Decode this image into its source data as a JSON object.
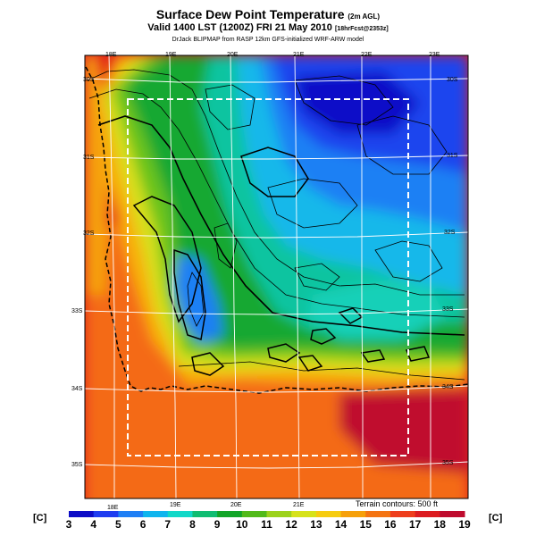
{
  "header": {
    "title": "Surface Dew Point Temperature",
    "title_suffix": "(2m AGL)",
    "subtitle": "Valid 1400 LST (1200Z) FRI 21 May 2010",
    "subtitle_suffix": "[18hrFcst@2353z]",
    "credit": "DrJack BLIPMAP from RASP 12km GFS-initialized WRF-ARW model"
  },
  "map": {
    "lon_labels_top": [
      "18E",
      "19E",
      "20E",
      "21E",
      "22E",
      "23E"
    ],
    "lon_labels_bottom": [
      "18E",
      "19E",
      "20E",
      "21E"
    ],
    "lat_labels_left": [
      "30S",
      "31S",
      "32S",
      "33S",
      "34S",
      "35S"
    ],
    "lat_labels_right": [
      "30S",
      "31S",
      "32S",
      "33S",
      "34S",
      "35S"
    ],
    "footnote": "Terrain contours: 500 ft"
  },
  "colorbar": {
    "unit_left": "[C]",
    "unit_right": "[C]",
    "labels": [
      "3",
      "4",
      "5",
      "6",
      "7",
      "8",
      "9",
      "10",
      "11",
      "12",
      "13",
      "14",
      "15",
      "16",
      "17",
      "18",
      "19"
    ],
    "colors": [
      "#0c0cc6",
      "#1f3df0",
      "#1e7ff5",
      "#10b5ee",
      "#12d8c8",
      "#10bd72",
      "#12a528",
      "#52ba1a",
      "#9cd21c",
      "#d6e21a",
      "#f6cc10",
      "#f6a00a",
      "#f47412",
      "#ee3e1c",
      "#dc1c20",
      "#bf0b2e"
    ]
  }
}
